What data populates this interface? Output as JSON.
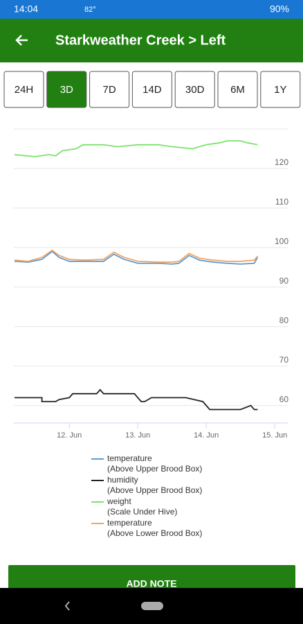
{
  "status_bar": {
    "time": "14:04",
    "temperature": "82°",
    "battery": "90%"
  },
  "header": {
    "title": "Starkweather Creek > Left"
  },
  "range_buttons": {
    "items": [
      "24H",
      "3D",
      "7D",
      "14D",
      "30D",
      "6M",
      "1Y"
    ],
    "selected": 1
  },
  "chart_data": {
    "type": "line",
    "xlim": [
      11.19,
      15.19
    ],
    "xticks": [
      {
        "value": 12,
        "label": "12. Jun"
      },
      {
        "value": 13,
        "label": "13. Jun"
      },
      {
        "value": 14,
        "label": "14. Jun"
      },
      {
        "value": 15,
        "label": "15. Jun"
      }
    ],
    "ylim": [
      55.6,
      130
    ],
    "yticks": [
      60,
      70,
      80,
      90,
      100,
      110,
      120
    ],
    "grid": true,
    "series": [
      {
        "name": "temperature",
        "location": "(Above Upper Brood Box)",
        "color": "#5b9bd5",
        "x": [
          11.2,
          11.4,
          11.6,
          11.75,
          11.85,
          12,
          12.2,
          12.5,
          12.65,
          12.8,
          13,
          13.3,
          13.5,
          13.6,
          13.75,
          13.9,
          14.1,
          14.3,
          14.5,
          14.7,
          14.75
        ],
        "values": [
          96.5,
          96.3,
          97,
          99,
          97.5,
          96.5,
          96.5,
          96.5,
          98.3,
          97,
          96,
          96,
          95.8,
          96,
          98,
          96.8,
          96.3,
          96,
          95.8,
          96,
          97.5
        ]
      },
      {
        "name": "humidity",
        "location": "(Above Upper Brood Box)",
        "color": "#222222",
        "x": [
          11.2,
          11.6,
          11.6,
          11.8,
          11.85,
          12,
          12.05,
          12.4,
          12.45,
          12.5,
          12.95,
          13.05,
          13.1,
          13.2,
          13.7,
          13.95,
          14.05,
          14.5,
          14.65,
          14.7,
          14.75
        ],
        "values": [
          62,
          62,
          61,
          61,
          61.5,
          62,
          63,
          63,
          64,
          63,
          63,
          61,
          61,
          62,
          62,
          61,
          59,
          59,
          60,
          59,
          59
        ]
      },
      {
        "name": "weight",
        "location": "(Scale Under Hive)",
        "color": "#7be36b",
        "x": [
          11.2,
          11.5,
          11.7,
          11.8,
          11.9,
          12.1,
          12.2,
          12.5,
          12.7,
          13,
          13.3,
          13.5,
          13.8,
          14,
          14.2,
          14.3,
          14.5,
          14.6,
          14.75
        ],
        "values": [
          123.5,
          123,
          123.5,
          123.2,
          124.5,
          125,
          126,
          126,
          125.5,
          126,
          126,
          125.5,
          125,
          126,
          126.5,
          127,
          127,
          126.5,
          126
        ]
      },
      {
        "name": "temperature",
        "location": "(Above Lower Brood Box)",
        "color": "#f4a460",
        "x": [
          11.2,
          11.4,
          11.6,
          11.75,
          11.85,
          12,
          12.2,
          12.5,
          12.65,
          12.8,
          13,
          13.3,
          13.5,
          13.6,
          13.75,
          13.9,
          14.1,
          14.3,
          14.5,
          14.7,
          14.75
        ],
        "values": [
          96.8,
          96.5,
          97.5,
          99.3,
          98,
          97,
          96.8,
          97,
          98.8,
          97.5,
          96.5,
          96.3,
          96.3,
          96.5,
          98.5,
          97.3,
          96.8,
          96.5,
          96.5,
          96.8,
          97.8
        ]
      }
    ]
  },
  "action_button": {
    "label": "ADD NOTE"
  }
}
